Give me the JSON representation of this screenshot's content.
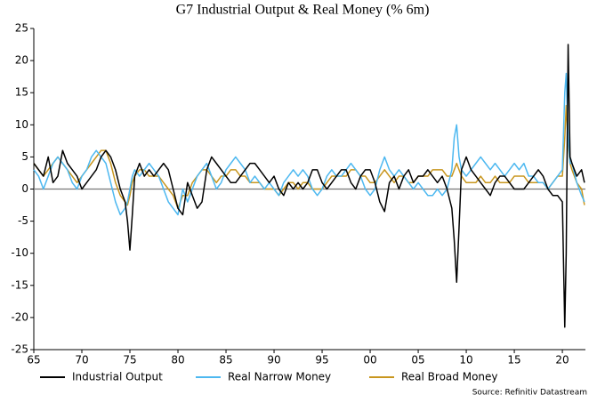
{
  "chart_data": {
    "type": "line",
    "title": "G7 Industrial Output & Real Money (% 6m)",
    "source": "Source: Refinitiv Datastream",
    "x": [
      1965,
      1965.5,
      1966,
      1966.5,
      1967,
      1967.5,
      1968,
      1968.5,
      1969,
      1969.5,
      1970,
      1970.5,
      1971,
      1971.5,
      1972,
      1972.5,
      1973,
      1973.5,
      1974,
      1974.5,
      1974.75,
      1975,
      1975.25,
      1975.5,
      1976,
      1976.5,
      1977,
      1977.5,
      1978,
      1978.5,
      1979,
      1979.5,
      1980,
      1980.5,
      1981,
      1981.5,
      1982,
      1982.5,
      1983,
      1983.5,
      1984,
      1984.5,
      1985,
      1985.5,
      1986,
      1986.5,
      1987,
      1987.5,
      1988,
      1988.5,
      1989,
      1989.5,
      1990,
      1990.5,
      1991,
      1991.5,
      1992,
      1992.5,
      1993,
      1993.5,
      1994,
      1994.5,
      1995,
      1995.5,
      1996,
      1996.5,
      1997,
      1997.5,
      1998,
      1998.5,
      1999,
      1999.5,
      2000,
      2000.5,
      2001,
      2001.5,
      2002,
      2002.5,
      2003,
      2003.5,
      2004,
      2004.5,
      2005,
      2005.5,
      2006,
      2006.5,
      2007,
      2007.5,
      2008,
      2008.5,
      2008.75,
      2009,
      2009.25,
      2009.5,
      2010,
      2010.5,
      2011,
      2011.5,
      2012,
      2012.5,
      2013,
      2013.5,
      2014,
      2014.5,
      2015,
      2015.5,
      2016,
      2016.5,
      2017,
      2017.5,
      2018,
      2018.5,
      2019,
      2019.5,
      2020,
      2020.25,
      2020.4,
      2020.6,
      2020.8,
      2021,
      2021.5,
      2022,
      2022.3
    ],
    "series": [
      {
        "name": "Industrial Output",
        "color": "#000000",
        "values": [
          4,
          3,
          2,
          5,
          1,
          2,
          6,
          4,
          3,
          2,
          0,
          1,
          2,
          3,
          5,
          6,
          5,
          3,
          0,
          -2,
          -5,
          -9.5,
          -4,
          2,
          4,
          2,
          3,
          2,
          3,
          4,
          3,
          0,
          -3,
          -4,
          1,
          -1,
          -3,
          -2,
          3,
          5,
          4,
          3,
          2,
          1,
          1,
          2,
          3,
          4,
          4,
          3,
          2,
          1,
          2,
          0,
          -1,
          1,
          0,
          1,
          0,
          1,
          3,
          3,
          1,
          0,
          1,
          2,
          3,
          3,
          1,
          0,
          2,
          3,
          3,
          1,
          -2,
          -3.5,
          1,
          2,
          0,
          2,
          3,
          1,
          2,
          2,
          3,
          2,
          1,
          2,
          0,
          -3,
          -8,
          -14.5,
          -6,
          3,
          5,
          3,
          2,
          1,
          0,
          -1,
          1,
          2,
          2,
          1,
          0,
          0,
          0,
          1,
          2,
          3,
          2,
          0,
          -1,
          -1,
          -2,
          -21.5,
          -10,
          22.5,
          5,
          4,
          2,
          3,
          1
        ]
      },
      {
        "name": "Real Narrow Money",
        "color": "#4db8f0",
        "values": [
          3,
          2,
          0,
          2,
          4,
          5,
          4,
          3,
          1,
          0,
          2,
          3,
          5,
          6,
          5,
          4,
          1,
          -2,
          -4,
          -3,
          -2,
          0,
          2,
          3,
          2,
          3,
          4,
          3,
          2,
          0,
          -2,
          -3,
          -4,
          0,
          -2,
          0,
          2,
          3,
          4,
          2,
          0,
          1,
          3,
          4,
          5,
          4,
          3,
          1,
          2,
          1,
          0,
          1,
          0,
          -1,
          1,
          2,
          3,
          2,
          3,
          2,
          0,
          -1,
          0,
          2,
          3,
          2,
          2,
          3,
          4,
          3,
          2,
          0,
          -1,
          0,
          3,
          5,
          3,
          2,
          3,
          2,
          1,
          0,
          1,
          0,
          -1,
          -1,
          0,
          -1,
          0,
          3,
          8,
          10,
          5,
          3,
          2,
          3,
          4,
          5,
          4,
          3,
          4,
          3,
          2,
          3,
          4,
          3,
          4,
          2,
          2,
          1,
          1,
          0,
          1,
          2,
          3,
          15,
          18,
          8,
          4,
          4,
          1,
          -1,
          -2
        ]
      },
      {
        "name": "Real Broad Money",
        "color": "#c8961e",
        "values": [
          4,
          3,
          2,
          3,
          4,
          5,
          4,
          3,
          2,
          1,
          2,
          3,
          4,
          5,
          6,
          6,
          4,
          1,
          -1,
          -2,
          -2.5,
          -1,
          1,
          2,
          3,
          3,
          2,
          2,
          2,
          1,
          0,
          -1,
          -3,
          -1,
          -1,
          1,
          2,
          3,
          3,
          2,
          1,
          2,
          2,
          3,
          3,
          2,
          2,
          1,
          1,
          1,
          0,
          0,
          0,
          -1,
          0,
          1,
          1,
          0,
          1,
          1,
          0,
          0,
          0,
          1,
          2,
          2,
          2,
          2,
          3,
          3,
          2,
          2,
          1,
          1,
          2,
          3,
          2,
          1,
          2,
          2,
          1,
          1,
          2,
          2,
          2,
          3,
          3,
          3,
          2,
          2,
          3,
          4,
          3,
          2,
          1,
          1,
          1,
          2,
          1,
          1,
          2,
          1,
          1,
          1,
          2,
          2,
          2,
          1,
          1,
          1,
          1,
          0,
          1,
          2,
          2,
          8,
          13,
          7,
          4,
          3,
          1,
          0,
          -2.5
        ]
      }
    ],
    "xlim": [
      1965,
      2022.4
    ],
    "xticks": [
      {
        "value": 1965,
        "label": "65"
      },
      {
        "value": 1970,
        "label": "70"
      },
      {
        "value": 1975,
        "label": "75"
      },
      {
        "value": 1980,
        "label": "80"
      },
      {
        "value": 1985,
        "label": "85"
      },
      {
        "value": 1990,
        "label": "90"
      },
      {
        "value": 1995,
        "label": "95"
      },
      {
        "value": 2000,
        "label": "00"
      },
      {
        "value": 2005,
        "label": "05"
      },
      {
        "value": 2010,
        "label": "10"
      },
      {
        "value": 2015,
        "label": "15"
      },
      {
        "value": 2020,
        "label": "20"
      }
    ],
    "ylim": [
      -25,
      25
    ],
    "yticks": [
      -25,
      -20,
      -15,
      -10,
      -5,
      0,
      5,
      10,
      15,
      20,
      25
    ],
    "grid": false,
    "legend": "bottom"
  }
}
